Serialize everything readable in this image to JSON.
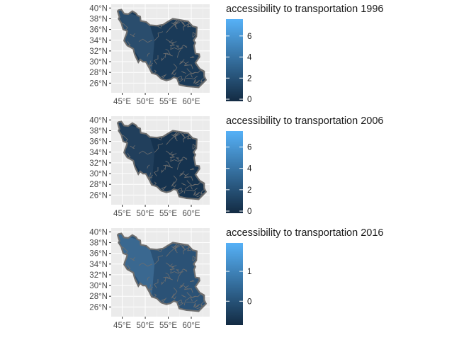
{
  "chart_data": [
    {
      "type": "choropleth",
      "legend_title": "accessibility to transportation 1996",
      "y_ticks": [
        "40°N",
        "38°N",
        "36°N",
        "34°N",
        "32°N",
        "30°N",
        "28°N",
        "26°N"
      ],
      "x_ticks": [
        "45°E",
        "50°E",
        "55°E",
        "60°E"
      ],
      "legend_ticks": [
        {
          "value": 6,
          "label": "6"
        },
        {
          "value": 4,
          "label": "4"
        },
        {
          "value": 2,
          "label": "2"
        },
        {
          "value": 0,
          "label": "0"
        }
      ],
      "legend_range": [
        -0.2,
        7.6
      ],
      "map_fill": "#1a3a58",
      "map_fill_west": "#2a4d6d"
    },
    {
      "type": "choropleth",
      "legend_title": "accessibility to transportation 2006",
      "y_ticks": [
        "40°N",
        "38°N",
        "36°N",
        "34°N",
        "32°N",
        "30°N",
        "28°N",
        "26°N"
      ],
      "x_ticks": [
        "45°E",
        "50°E",
        "55°E",
        "60°E"
      ],
      "legend_ticks": [
        {
          "value": 6,
          "label": "6"
        },
        {
          "value": 4,
          "label": "4"
        },
        {
          "value": 2,
          "label": "2"
        },
        {
          "value": 0,
          "label": "0"
        }
      ],
      "legend_range": [
        -0.2,
        7.5
      ],
      "map_fill": "#16334f",
      "map_fill_west": "#213f5c"
    },
    {
      "type": "choropleth",
      "legend_title": "accessibility to transportation 2016",
      "y_ticks": [
        "40°N",
        "38°N",
        "36°N",
        "34°N",
        "32°N",
        "30°N",
        "28°N",
        "26°N"
      ],
      "x_ticks": [
        "45°E",
        "50°E",
        "55°E",
        "60°E"
      ],
      "legend_ticks": [
        {
          "value": 1,
          "label": "1"
        },
        {
          "value": 0,
          "label": "0"
        }
      ],
      "legend_range": [
        -0.8,
        1.95
      ],
      "map_fill": "#2b5276",
      "map_fill_west": "#3a6890"
    }
  ],
  "colors": {
    "panel_background": "#ebebeb",
    "grid_line": "#ffffff",
    "border_line": "#6e6e6e",
    "legend_low": "#132b43",
    "legend_high": "#56b1f7"
  }
}
